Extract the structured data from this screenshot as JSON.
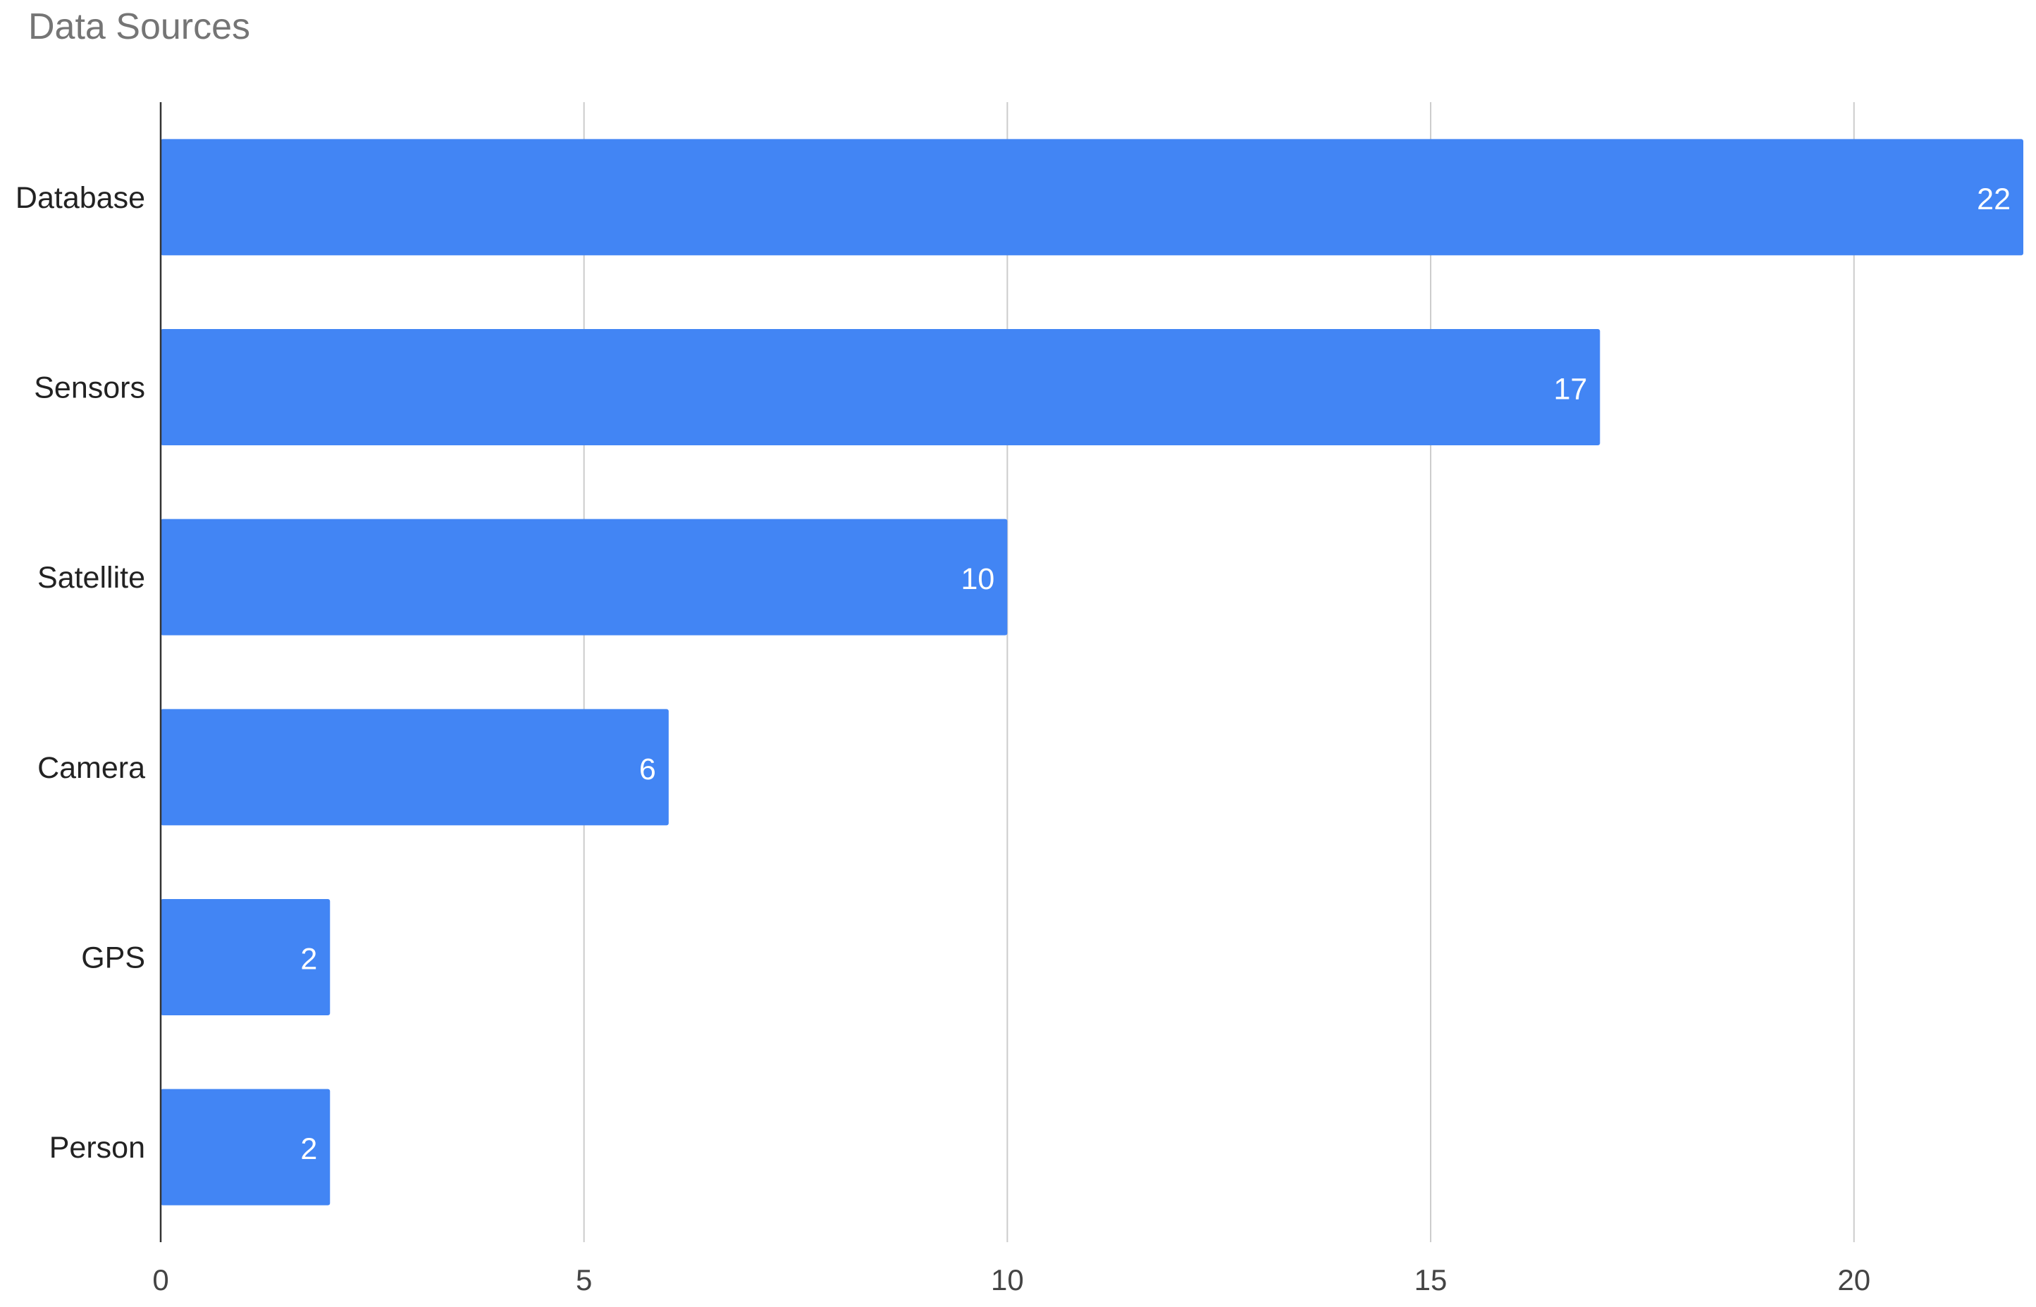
{
  "chart_data": {
    "type": "bar",
    "orientation": "horizontal",
    "title": "Data Sources",
    "xlabel": "",
    "ylabel": "",
    "categories": [
      "Database",
      "Sensors",
      "Satellite",
      "Camera",
      "GPS",
      "Person"
    ],
    "values": [
      22,
      17,
      10,
      6,
      2,
      2
    ],
    "data_labels": [
      "22",
      "17",
      "10",
      "6",
      "2",
      "2"
    ],
    "xlim": [
      0,
      22
    ],
    "x_ticks": [
      0,
      5,
      10,
      15,
      20
    ],
    "x_tick_labels": [
      "0",
      "5",
      "10",
      "15",
      "20"
    ],
    "grid": true,
    "legend": "none",
    "colors": {
      "bar": "#4285f4",
      "title": "#757575",
      "grid": "#cccccc"
    }
  }
}
